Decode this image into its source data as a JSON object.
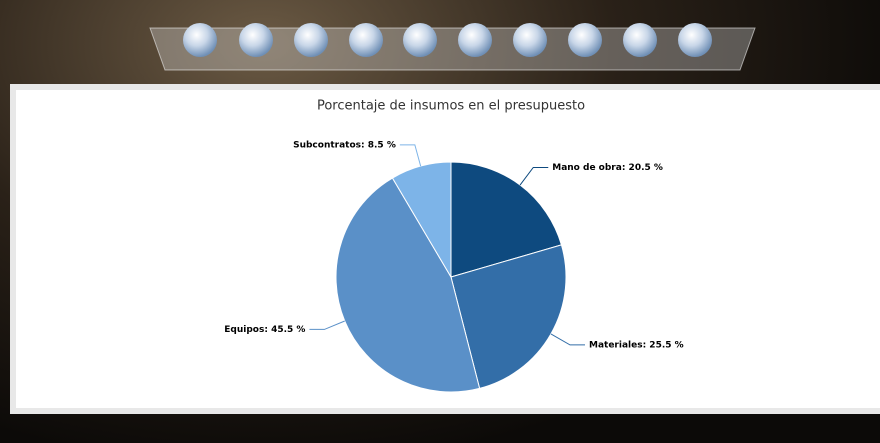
{
  "chart_data": {
    "type": "pie",
    "title": "Porcentaje de insumos en el presupuesto",
    "values": [
      20.5,
      25.5,
      45.5,
      8.5
    ],
    "value_labels": [
      "Mano de obra: 20.5 %",
      "Materiales: 25.5 %",
      "Equipos: 45.5 %",
      "Subcontratos: 8.5 %"
    ],
    "colors": [
      "#0e4a7f",
      "#336ea8",
      "#5a90c8",
      "#7db4e8"
    ]
  }
}
